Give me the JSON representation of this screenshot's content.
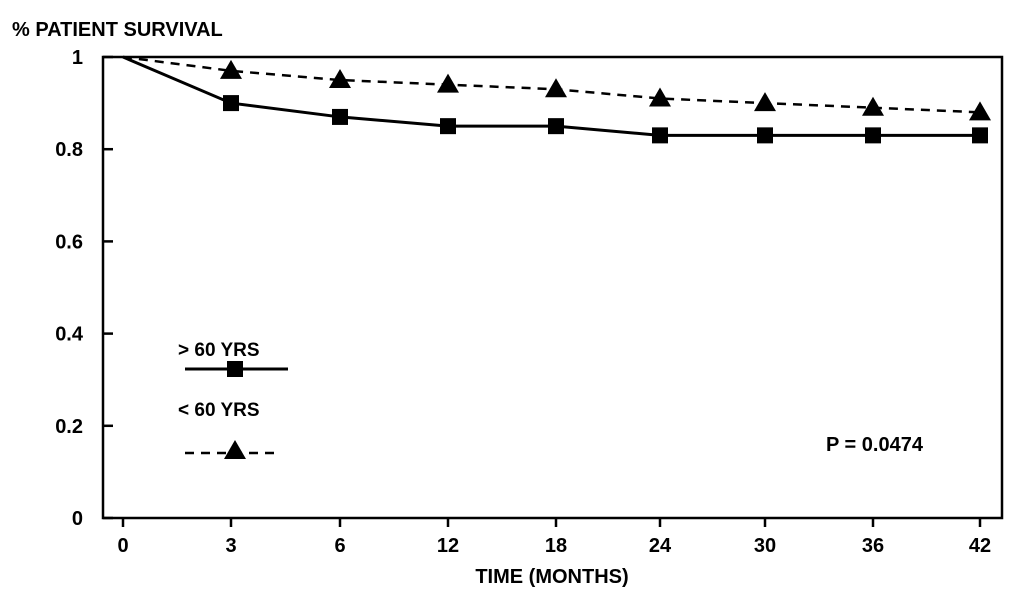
{
  "chart_data": {
    "type": "line",
    "title": "",
    "ylabel": "% PATIENT SURVIVAL",
    "xlabel": "TIME (MONTHS)",
    "categories": [
      "0",
      "3",
      "6",
      "12",
      "18",
      "24",
      "30",
      "36",
      "42"
    ],
    "yticks": [
      "0",
      "0.2",
      "0.4",
      "0.6",
      "0.8",
      "1"
    ],
    "ylim": [
      0,
      1
    ],
    "grid": false,
    "legend_position": "left",
    "series": [
      {
        "name": "> 60 YRS",
        "line_style": "solid",
        "marker": "square",
        "values": [
          1.0,
          0.9,
          0.87,
          0.85,
          0.85,
          0.83,
          0.83,
          0.83,
          0.83
        ]
      },
      {
        "name": "< 60 YRS",
        "line_style": "dashed",
        "marker": "triangle",
        "values": [
          1.0,
          0.97,
          0.95,
          0.94,
          0.93,
          0.91,
          0.9,
          0.89,
          0.88
        ]
      }
    ],
    "annotation": "P = 0.0474",
    "color": "#000000"
  }
}
